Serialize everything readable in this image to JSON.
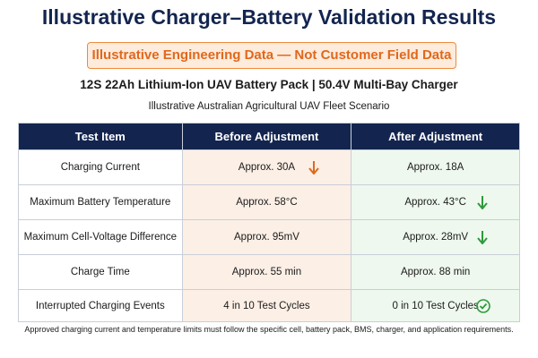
{
  "header": {
    "title": "Illustrative Charger–Battery Validation Results",
    "banner": "Illustrative Engineering Data — Not Customer Field Data",
    "subtitle": "12S 22Ah Lithium-Ion UAV Battery Pack  |  50.4V Multi-Bay Charger",
    "scenario": "Illustrative Australian Agricultural UAV Fleet Scenario"
  },
  "table": {
    "columns": [
      "Test Item",
      "Before Adjustment",
      "After Adjustment"
    ],
    "rows": [
      [
        "Charging Current",
        "Approx. 30A",
        "Approx. 18A"
      ],
      [
        "Maximum Battery Temperature",
        "Approx. 58°C",
        "Approx. 43°C"
      ],
      [
        "Maximum Cell-Voltage Difference",
        "Approx. 95mV",
        "Approx. 28mV"
      ],
      [
        "Charge Time",
        "Approx. 55 min",
        "Approx. 88 min"
      ],
      [
        "Interrupted Charging Events",
        "4 in 10 Test Cycles",
        "0 in 10 Test Cycles"
      ]
    ]
  },
  "footnote": "Approved charging current and temperature limits must follow the specific cell, battery pack, BMS, charger, and application requirements."
}
